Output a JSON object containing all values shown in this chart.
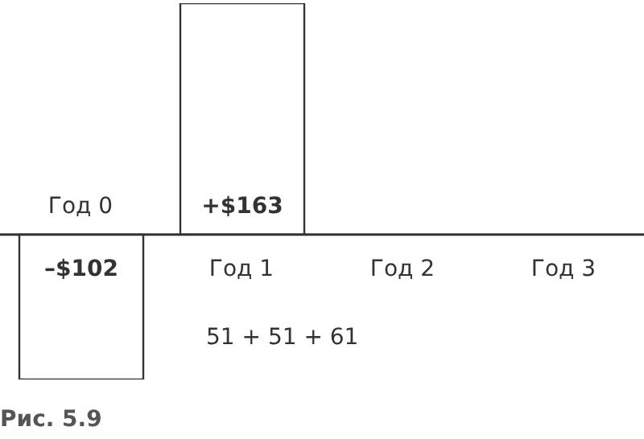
{
  "chart_data": {
    "type": "bar",
    "categories": [
      "Год 0",
      "Год 1",
      "Год 2",
      "Год 3"
    ],
    "series": [
      {
        "color": "#333333",
        "values": [
          -102,
          163,
          null,
          null
        ],
        "value_labels": [
          "–$102",
          "+$163",
          null,
          null
        ]
      }
    ],
    "annotations": [
      "51 + 51 + 61",
      "Рис. 5.9"
    ],
    "tick_labels": "x"
  }
}
